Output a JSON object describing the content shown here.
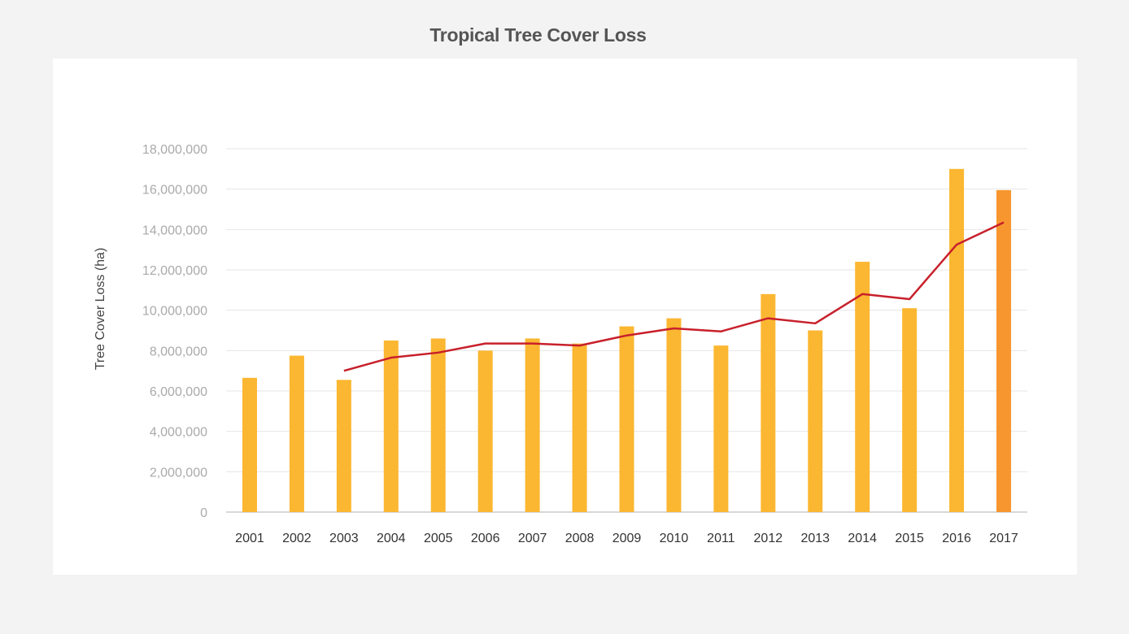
{
  "chart_data": {
    "type": "bar",
    "title": "Tropical Tree Cover Loss",
    "xlabel": "",
    "ylabel": "Tree Cover Loss (ha)",
    "ylim": [
      0,
      18000000
    ],
    "yticks": [
      "0",
      "2,000,000",
      "4,000,000",
      "6,000,000",
      "8,000,000",
      "10,000,000",
      "12,000,000",
      "14,000,000",
      "16,000,000",
      "18,000,000"
    ],
    "categories": [
      "2001",
      "2002",
      "2003",
      "2004",
      "2005",
      "2006",
      "2007",
      "2008",
      "2009",
      "2010",
      "2011",
      "2012",
      "2013",
      "2014",
      "2015",
      "2016",
      "2017"
    ],
    "values": [
      6650000,
      7750000,
      6550000,
      8500000,
      8600000,
      8000000,
      8600000,
      8350000,
      9200000,
      9600000,
      8250000,
      10800000,
      9000000,
      12400000,
      10100000,
      17000000,
      15950000
    ],
    "line_values": [
      null,
      null,
      7000000,
      7650000,
      7900000,
      8350000,
      8350000,
      8250000,
      8750000,
      9100000,
      8950000,
      9600000,
      9350000,
      10800000,
      10550000,
      13250000,
      14350000
    ],
    "grid": true,
    "colors": {
      "bar": "#fbb731",
      "bar_highlight": "#f7962e",
      "highlight_index": 16,
      "line": "#c8202b",
      "grid": "#e6e6e6",
      "axis": "#cccccc"
    }
  }
}
